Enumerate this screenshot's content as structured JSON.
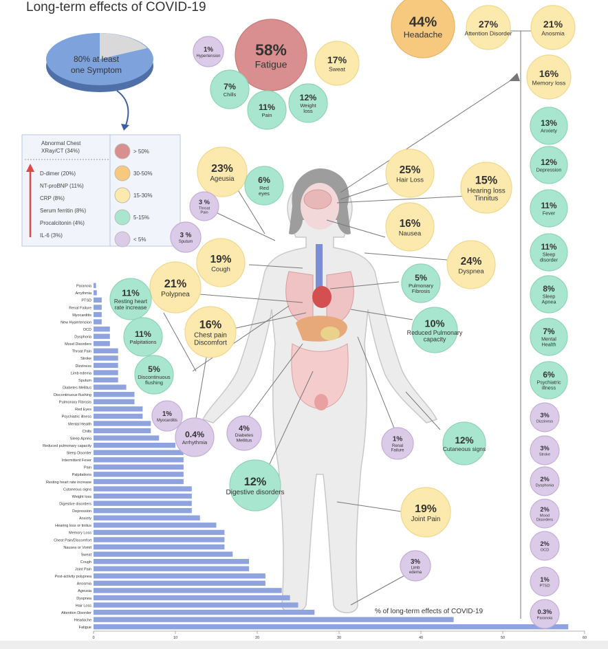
{
  "title": "Long-term effects of COVID-19",
  "pie": {
    "label_line1": "80% at least",
    "label_line2": "one Symptom",
    "value": 80
  },
  "legend": {
    "markers": [
      "Abnormal Chest",
      "XRay/CT (34%)",
      "D-dimer (20%)",
      "NT-proBNP (11%)",
      "CRP (8%)",
      "Serum ferritin (8%)",
      "Procalcitonin (4%)",
      "IL-6 (3%)"
    ],
    "ranges": [
      "> 50%",
      "30-50%",
      "15-30%",
      "5-15%",
      "< 5%"
    ],
    "range_colors": [
      "#d98f8f",
      "#f6c97f",
      "#fbe9ad",
      "#a8e6cf",
      "#dccbe8"
    ]
  },
  "bubbles": [
    {
      "pct": "58%",
      "label": "Fatigue",
      "tier": 0
    },
    {
      "pct": "44%",
      "label": "Headache",
      "tier": 1
    },
    {
      "pct": "27%",
      "label": "Attention Disorder",
      "tier": 2
    },
    {
      "pct": "21%",
      "label": "Anosmia",
      "tier": 2
    },
    {
      "pct": "1%",
      "label": "Hypertension",
      "tier": 4
    },
    {
      "pct": "17%",
      "label": "Sweat",
      "tier": 2
    },
    {
      "pct": "7%",
      "label": "Chills",
      "tier": 3
    },
    {
      "pct": "11%",
      "label": "Pain",
      "tier": 3
    },
    {
      "pct": "12%",
      "label": "Weight loss",
      "tier": 3
    },
    {
      "pct": "16%",
      "label": "Memory loss",
      "tier": 2
    },
    {
      "pct": "13%",
      "label": "Anxiety",
      "tier": 3
    },
    {
      "pct": "12%",
      "label": "Depression",
      "tier": 3
    },
    {
      "pct": "11%",
      "label": "Fever",
      "tier": 3
    },
    {
      "pct": "11%",
      "label": "Sleep disorder",
      "tier": 3
    },
    {
      "pct": "8%",
      "label": "Sleep Apnea",
      "tier": 3
    },
    {
      "pct": "7%",
      "label": "Mental Health",
      "tier": 3
    },
    {
      "pct": "6%",
      "label": "Psychiatric illness",
      "tier": 3
    },
    {
      "pct": "3%",
      "label": "Dizziness",
      "tier": 4
    },
    {
      "pct": "3%",
      "label": "Stroke",
      "tier": 4
    },
    {
      "pct": "2%",
      "label": "Dysphonia",
      "tier": 4
    },
    {
      "pct": "2%",
      "label": "Mood Disorders",
      "tier": 4
    },
    {
      "pct": "2%",
      "label": "OCD",
      "tier": 4
    },
    {
      "pct": "1%",
      "label": "PTSD",
      "tier": 4
    },
    {
      "pct": "0.3%",
      "label": "Paranoia",
      "tier": 4
    },
    {
      "pct": "23%",
      "label": "Ageusia",
      "tier": 2
    },
    {
      "pct": "6%",
      "label": "Red eyes",
      "tier": 3
    },
    {
      "pct": "25%",
      "label": "Hair Loss",
      "tier": 2
    },
    {
      "pct": "15%",
      "label": "Hearing loss Tinnitus",
      "tier": 2
    },
    {
      "pct": "3 %",
      "label": "Throat Pain",
      "tier": 4
    },
    {
      "pct": "3 %",
      "label": "Sputum",
      "tier": 4
    },
    {
      "pct": "16%",
      "label": "Nausea",
      "tier": 2
    },
    {
      "pct": "19%",
      "label": "Cough",
      "tier": 2
    },
    {
      "pct": "24%",
      "label": "Dyspnea",
      "tier": 2
    },
    {
      "pct": "21%",
      "label": "Polypnea",
      "tier": 2
    },
    {
      "pct": "11%",
      "label": "Resting heart rate increase",
      "tier": 3
    },
    {
      "pct": "5%",
      "label": "Pulmonary Fibrosis",
      "tier": 3
    },
    {
      "pct": "16%",
      "label": "Chest pain Discomfort",
      "tier": 2
    },
    {
      "pct": "10%",
      "label": "Reduced Pulmonary capacity",
      "tier": 3
    },
    {
      "pct": "11%",
      "label": "Palpitations",
      "tier": 3
    },
    {
      "pct": "5%",
      "label": "Discontinuous flushing",
      "tier": 3
    },
    {
      "pct": "1%",
      "label": "Myocarditis",
      "tier": 4
    },
    {
      "pct": "0.4%",
      "label": "Arrhythmia",
      "tier": 4
    },
    {
      "pct": "4%",
      "label": "Diabetes Mellitus",
      "tier": 4
    },
    {
      "pct": "1%",
      "label": "Renal Failure",
      "tier": 4
    },
    {
      "pct": "12%",
      "label": "Cutaneous signs",
      "tier": 3
    },
    {
      "pct": "12%",
      "label": "Digestive disorders",
      "tier": 3
    },
    {
      "pct": "19%",
      "label": "Joint Pain",
      "tier": 2
    },
    {
      "pct": "3%",
      "label": "Limb edema",
      "tier": 4
    }
  ],
  "chart_data": {
    "type": "bar",
    "orientation": "horizontal",
    "title": "% of long-term effects of COVID-19",
    "xlim": [
      0,
      60
    ],
    "xticks": [
      0,
      10,
      20,
      30,
      40,
      50,
      60
    ],
    "bar_color": "#8fa4df",
    "categories": [
      "Paranoia",
      "Arrythmia",
      "PTSD",
      "Renal Failure",
      "Myocarditis",
      "New Hypertension",
      "OCD",
      "Dysphoria",
      "Mood Disorders",
      "Throat Pain",
      "Stroke",
      "Dizziness",
      "Limb edema",
      "Sputum",
      "Diabetes Mellitus",
      "Discontinuous flushing",
      "Pulmonary Fibrosis",
      "Red Eyes",
      "Psychiatric illness",
      "Mental Health",
      "Chills",
      "Sleep Apnea",
      "Reduced pulmonary capacity",
      "Sleep Disorder",
      "Intermittent Fever",
      "Pain",
      "Palpitations",
      "Resting heart rate increase",
      "Cutaneous signs",
      "Weight loss",
      "Digestive disorders",
      "Depression",
      "Anxiety",
      "Hearing loss or tinitus",
      "Memory Loss",
      "Chest Pain/Discomfort",
      "Nausea or Vomit",
      "Sweat",
      "Cough",
      "Joint Pain",
      "Post-activity polypnea",
      "Anosmia",
      "Ageusia",
      "Dyspnea",
      "Hair Loss",
      "Attention Disorder",
      "Headache",
      "Fatigue"
    ],
    "values": [
      0.3,
      0.4,
      1,
      1,
      1,
      1,
      2,
      2,
      2,
      3,
      3,
      3,
      3,
      3,
      4,
      5,
      5,
      6,
      6,
      7,
      7,
      8,
      10,
      11,
      11,
      11,
      11,
      11,
      12,
      12,
      12,
      12,
      13,
      15,
      16,
      16,
      16,
      17,
      19,
      19,
      21,
      21,
      23,
      24,
      25,
      27,
      44,
      58
    ]
  }
}
